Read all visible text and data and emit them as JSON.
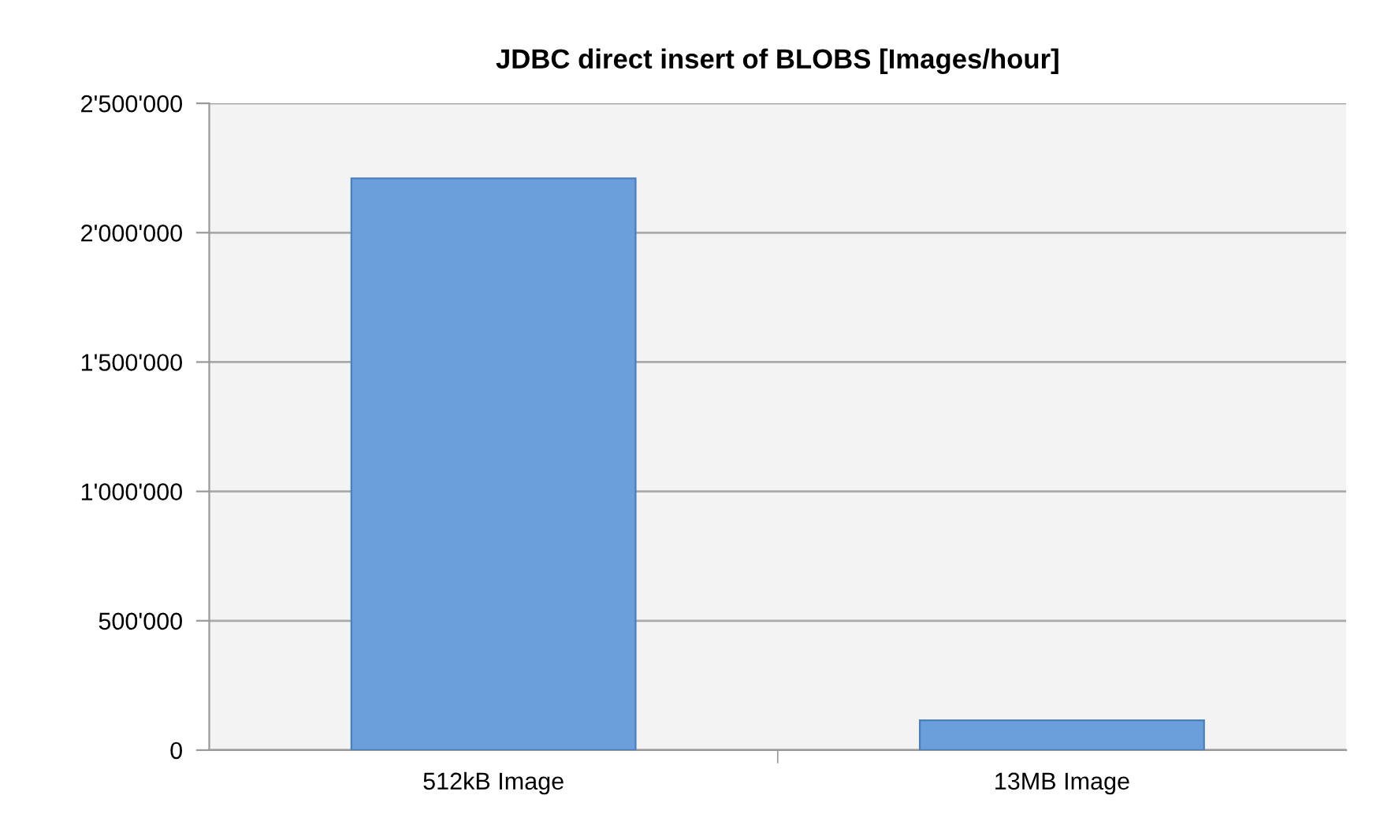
{
  "chart_data": {
    "type": "bar",
    "title": "JDBC direct insert of BLOBS [Images/hour]",
    "categories": [
      "512kB Image",
      "13MB Image"
    ],
    "series": [
      {
        "color": "#6a9fdc",
        "values": [
          2210000,
          115000
        ]
      }
    ],
    "ylim": [
      0,
      2500000
    ],
    "yticks": [
      {
        "value": 0,
        "label": "0"
      },
      {
        "value": 500000,
        "label": "500'000"
      },
      {
        "value": 1000000,
        "label": "1'000'000"
      },
      {
        "value": 1500000,
        "label": "1'500'000"
      },
      {
        "value": 2000000,
        "label": "2'000'000"
      },
      {
        "value": 2500000,
        "label": "2'500'000"
      }
    ],
    "grid": "y",
    "legend": false
  }
}
